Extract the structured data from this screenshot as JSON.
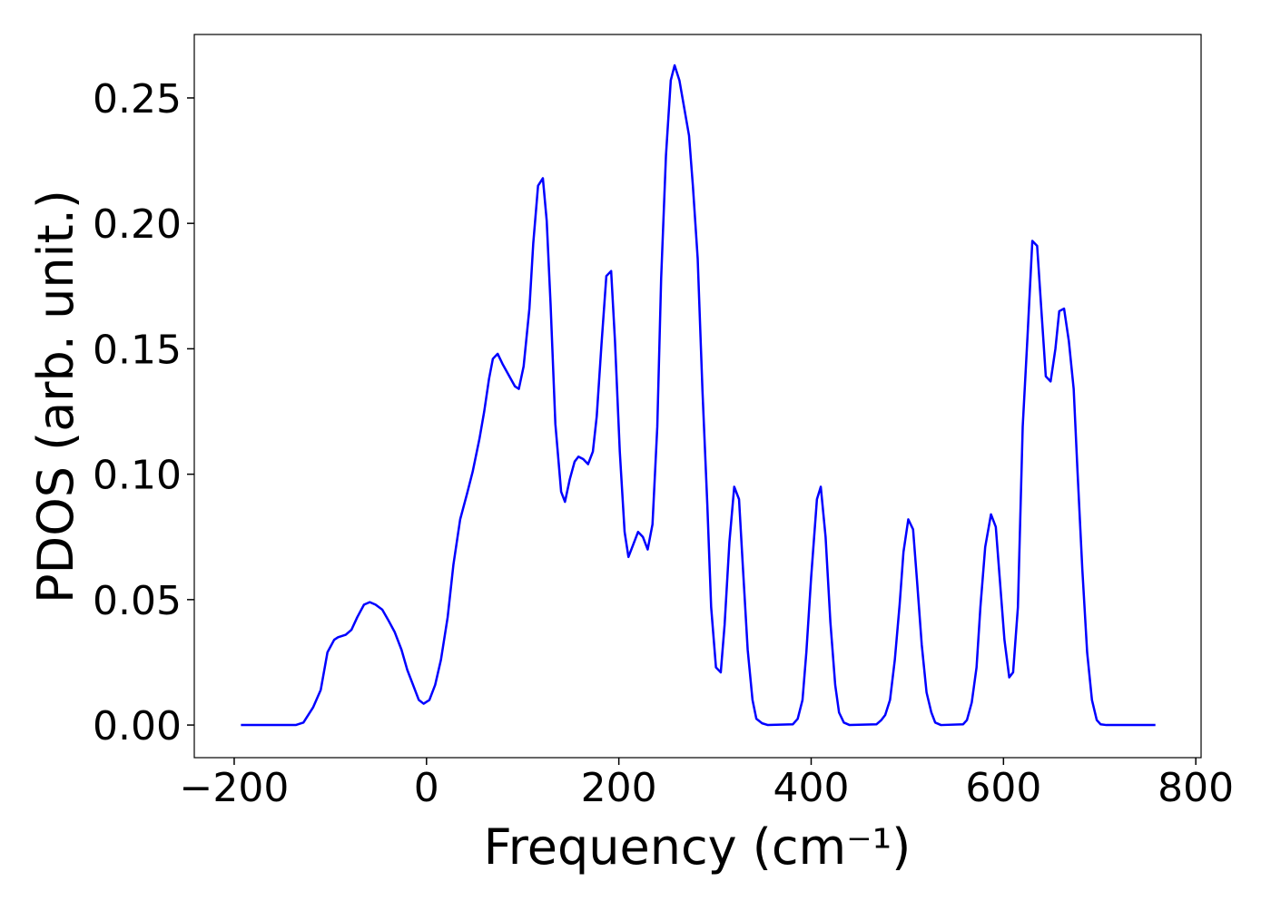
{
  "chart_data": {
    "type": "line",
    "xlabel": "Frequency (cm⁻¹)",
    "ylabel": "PDOS (arb. unit.)",
    "xlim": [
      -241.5,
      805.5
    ],
    "ylim": [
      -0.013,
      0.2753
    ],
    "xticks": [
      {
        "value": -200,
        "label": "−200"
      },
      0,
      200,
      400,
      600,
      800
    ],
    "yticks": [
      {
        "value": 0,
        "label": "0.00"
      },
      {
        "value": 0.05,
        "label": "0.05"
      },
      {
        "value": 0.1,
        "label": "0.10"
      },
      {
        "value": 0.15,
        "label": "0.15"
      },
      {
        "value": 0.2,
        "label": "0.20"
      },
      {
        "value": 0.25,
        "label": "0.25"
      }
    ],
    "grid": false,
    "series": [
      {
        "color": "#0000ff",
        "x": [
          -193,
          -136,
          -128,
          -118,
          -110,
          -103,
          -96,
          -92,
          -84,
          -78,
          -72,
          -65,
          -59,
          -53,
          -46,
          -40,
          -33,
          -26,
          -20,
          -13,
          -8,
          -3,
          3,
          9,
          15,
          22,
          28,
          35,
          42,
          48,
          55,
          60,
          65,
          69,
          74,
          79,
          92,
          96,
          101,
          107,
          111,
          116,
          121,
          125,
          129,
          134,
          140,
          144,
          149,
          154,
          158,
          163,
          168,
          173,
          177,
          182,
          187,
          192,
          196,
          201,
          206,
          210,
          215,
          220,
          225,
          230,
          235,
          240,
          244,
          249,
          254,
          258,
          263,
          268,
          273,
          277,
          282,
          287,
          292,
          296,
          301,
          306,
          310,
          315,
          320,
          325,
          329,
          334,
          339,
          343,
          349,
          355,
          381,
          386,
          391,
          395,
          400,
          406,
          410,
          415,
          420,
          425,
          429,
          434,
          440,
          468,
          473,
          477,
          482,
          487,
          492,
          496,
          501,
          506,
          510,
          515,
          520,
          525,
          529,
          535,
          558,
          562,
          567,
          572,
          576,
          581,
          587,
          592,
          596,
          601,
          606,
          610,
          615,
          620,
          625,
          630,
          635,
          640,
          644,
          649,
          654,
          658,
          663,
          668,
          673,
          677,
          682,
          687,
          692,
          697,
          701,
          707,
          758
        ],
        "values": [
          0,
          0,
          0.001,
          0.007,
          0.014,
          0.029,
          0.034,
          0.035,
          0.036,
          0.038,
          0.043,
          0.048,
          0.049,
          0.048,
          0.046,
          0.042,
          0.037,
          0.03,
          0.022,
          0.015,
          0.01,
          0.0085,
          0.01,
          0.016,
          0.026,
          0.043,
          0.064,
          0.082,
          0.092,
          0.101,
          0.114,
          0.125,
          0.138,
          0.146,
          0.148,
          0.144,
          0.135,
          0.134,
          0.143,
          0.166,
          0.192,
          0.215,
          0.218,
          0.201,
          0.168,
          0.12,
          0.093,
          0.089,
          0.098,
          0.105,
          0.107,
          0.106,
          0.104,
          0.109,
          0.123,
          0.152,
          0.179,
          0.181,
          0.153,
          0.109,
          0.077,
          0.067,
          0.072,
          0.077,
          0.075,
          0.07,
          0.08,
          0.119,
          0.178,
          0.227,
          0.257,
          0.263,
          0.257,
          0.246,
          0.235,
          0.215,
          0.186,
          0.133,
          0.088,
          0.047,
          0.023,
          0.021,
          0.04,
          0.073,
          0.095,
          0.09,
          0.063,
          0.03,
          0.01,
          0.0025,
          0.0007,
          0,
          0.0003,
          0.0025,
          0.01,
          0.029,
          0.059,
          0.09,
          0.095,
          0.075,
          0.041,
          0.016,
          0.005,
          0.001,
          0,
          0.0003,
          0.002,
          0.004,
          0.01,
          0.026,
          0.048,
          0.069,
          0.082,
          0.078,
          0.058,
          0.032,
          0.013,
          0.005,
          0.001,
          0,
          0.0003,
          0.002,
          0.009,
          0.023,
          0.047,
          0.071,
          0.084,
          0.079,
          0.059,
          0.034,
          0.019,
          0.021,
          0.047,
          0.119,
          0.155,
          0.193,
          0.191,
          0.162,
          0.139,
          0.137,
          0.15,
          0.165,
          0.166,
          0.153,
          0.134,
          0.101,
          0.062,
          0.029,
          0.01,
          0.002,
          0.0003,
          0,
          0
        ]
      }
    ]
  }
}
